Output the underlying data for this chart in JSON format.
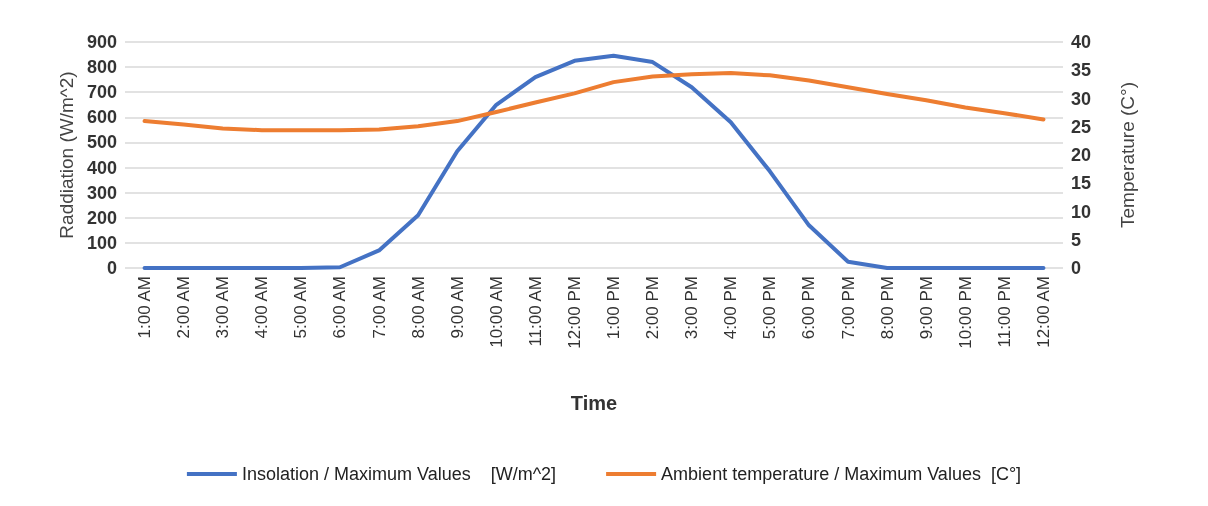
{
  "chart_data": {
    "type": "line",
    "categories": [
      "1:00 AM",
      "2:00 AM",
      "3:00 AM",
      "4:00 AM",
      "5:00 AM",
      "6:00 AM",
      "7:00 AM",
      "8:00 AM",
      "9:00 AM",
      "10:00 AM",
      "11:00 AM",
      "12:00 PM",
      "1:00 PM",
      "2:00 PM",
      "3:00 PM",
      "4:00 PM",
      "5:00 PM",
      "6:00 PM",
      "7:00 PM",
      "8:00 PM",
      "9:00 PM",
      "10:00 PM",
      "11:00 PM",
      "12:00 AM"
    ],
    "xlabel": "Time",
    "ylabel": "Raddiation (W/m^2)",
    "y2label": "Temperature (C°)",
    "series": [
      {
        "name": "Insolation / Maximum Values    [W/m^2]",
        "color": "#4472c4",
        "values": [
          0,
          0,
          0,
          0,
          0,
          3,
          70,
          210,
          465,
          650,
          760,
          825,
          845,
          820,
          720,
          580,
          385,
          170,
          25,
          0,
          0,
          0,
          0,
          0
        ]
      },
      {
        "name": "Ambient temperature / Maximum Values  [C°]",
        "color": "#ed7d31",
        "axis": "y2",
        "values": [
          26.0,
          25.4,
          24.7,
          24.4,
          24.4,
          24.4,
          24.5,
          25.1,
          26.0,
          27.6,
          29.3,
          30.9,
          32.9,
          33.9,
          34.3,
          34.5,
          34.1,
          33.2,
          32.0,
          30.8,
          29.7,
          28.4,
          27.4,
          26.3
        ]
      }
    ],
    "ylim": [
      0,
      900
    ],
    "yticks": [
      0,
      100,
      200,
      300,
      400,
      500,
      600,
      700,
      800,
      900
    ],
    "y2lim": [
      0,
      40
    ],
    "y2ticks": [
      0,
      5,
      10,
      15,
      20,
      25,
      30,
      35,
      40
    ],
    "grid": "y",
    "legend": "bottom",
    "marker": "none",
    "line_style": "solid"
  }
}
